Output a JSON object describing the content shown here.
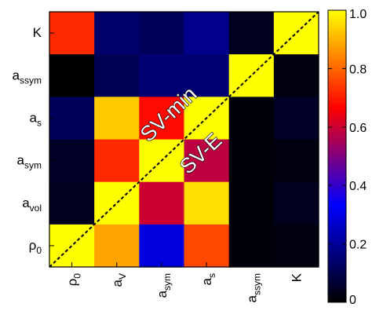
{
  "chart_data": {
    "type": "heatmap",
    "x_categories": [
      {
        "base": "ρ",
        "sub": "0"
      },
      {
        "base": "a",
        "sub": "V"
      },
      {
        "base": "a",
        "sub": "sym"
      },
      {
        "base": "a",
        "sub": "s"
      },
      {
        "base": "a",
        "sub": "ssym"
      },
      {
        "base": "K",
        "sub": ""
      }
    ],
    "y_categories_top_to_bottom": [
      {
        "base": "K",
        "sub": ""
      },
      {
        "base": "a",
        "sub": "ssym"
      },
      {
        "base": "a",
        "sub": "s"
      },
      {
        "base": "a",
        "sub": "sym"
      },
      {
        "base": "a",
        "sub": "vol"
      },
      {
        "base": "ρ",
        "sub": "0"
      }
    ],
    "values_top_to_bottom": [
      [
        0.72,
        0.14,
        0.12,
        0.18,
        0.04,
        1.0
      ],
      [
        0.0,
        0.11,
        0.15,
        0.15,
        1.0,
        0.02
      ],
      [
        0.12,
        0.93,
        0.68,
        1.0,
        0.01,
        0.05
      ],
      [
        0.05,
        0.72,
        1.0,
        0.58,
        0.01,
        0.02
      ],
      [
        0.04,
        1.0,
        0.6,
        0.96,
        0.01,
        0.04
      ],
      [
        1.0,
        0.88,
        0.29,
        0.76,
        0.01,
        0.02
      ]
    ],
    "colorbar": {
      "min": 0,
      "max": 1.0,
      "ticks": [
        0,
        0.2,
        0.4,
        0.6,
        0.8,
        1.0
      ],
      "tick_labels": [
        "0",
        "0.2",
        "0.4",
        "0.6",
        "0.8",
        "1.0"
      ],
      "colormap": [
        "#000000",
        "#0000ff",
        "#ff0000",
        "#ffff00"
      ]
    },
    "annotations": [
      "SV-min",
      "SV-E"
    ],
    "diagonal_line": "dashed"
  }
}
